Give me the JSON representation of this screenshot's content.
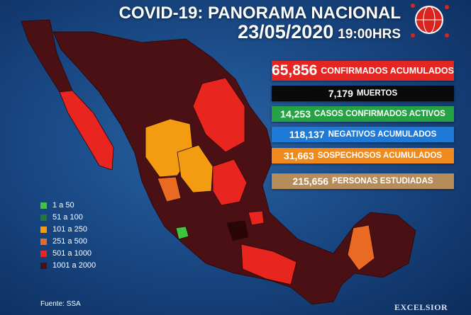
{
  "header": {
    "title": "COVID-19: PANORAMA NACIONAL",
    "date": "23/05/2020",
    "time": "19:00HRS"
  },
  "stats": [
    {
      "number": "65,856",
      "label": "CONFIRMADOS ACUMULADOS",
      "color": "#e52521"
    },
    {
      "number": "7,179",
      "label": "MUERTOS",
      "color": "#0a0a0a"
    },
    {
      "number": "14,253",
      "label": "CASOS CONFIRMADOS ACTIVOS",
      "color": "#25a244"
    },
    {
      "number": "118,137",
      "label": "NEGATIVOS ACUMULADOS",
      "color": "#1f79d6"
    },
    {
      "number": "31,663",
      "label": "SOSPECHOSOS ACUMULADOS",
      "color": "#f08a1c"
    },
    {
      "number": "215,656",
      "label": "PERSONAS ESTUDIADAS",
      "color": "#b58c5a"
    }
  ],
  "legend": [
    {
      "label": "1 a 50",
      "color": "#3ec43e"
    },
    {
      "label": "51 a 100",
      "color": "#1e7a34"
    },
    {
      "label": "101 a 250",
      "color": "#f39c12"
    },
    {
      "label": "251 a 500",
      "color": "#ea6a23"
    },
    {
      "label": "501 a 1000",
      "color": "#e8261f"
    },
    {
      "label": "1001 a 2000",
      "color": "#4a0f12"
    }
  ],
  "footer": {
    "source": "Fuente: SSA",
    "brand": "EXCELSIOR"
  }
}
